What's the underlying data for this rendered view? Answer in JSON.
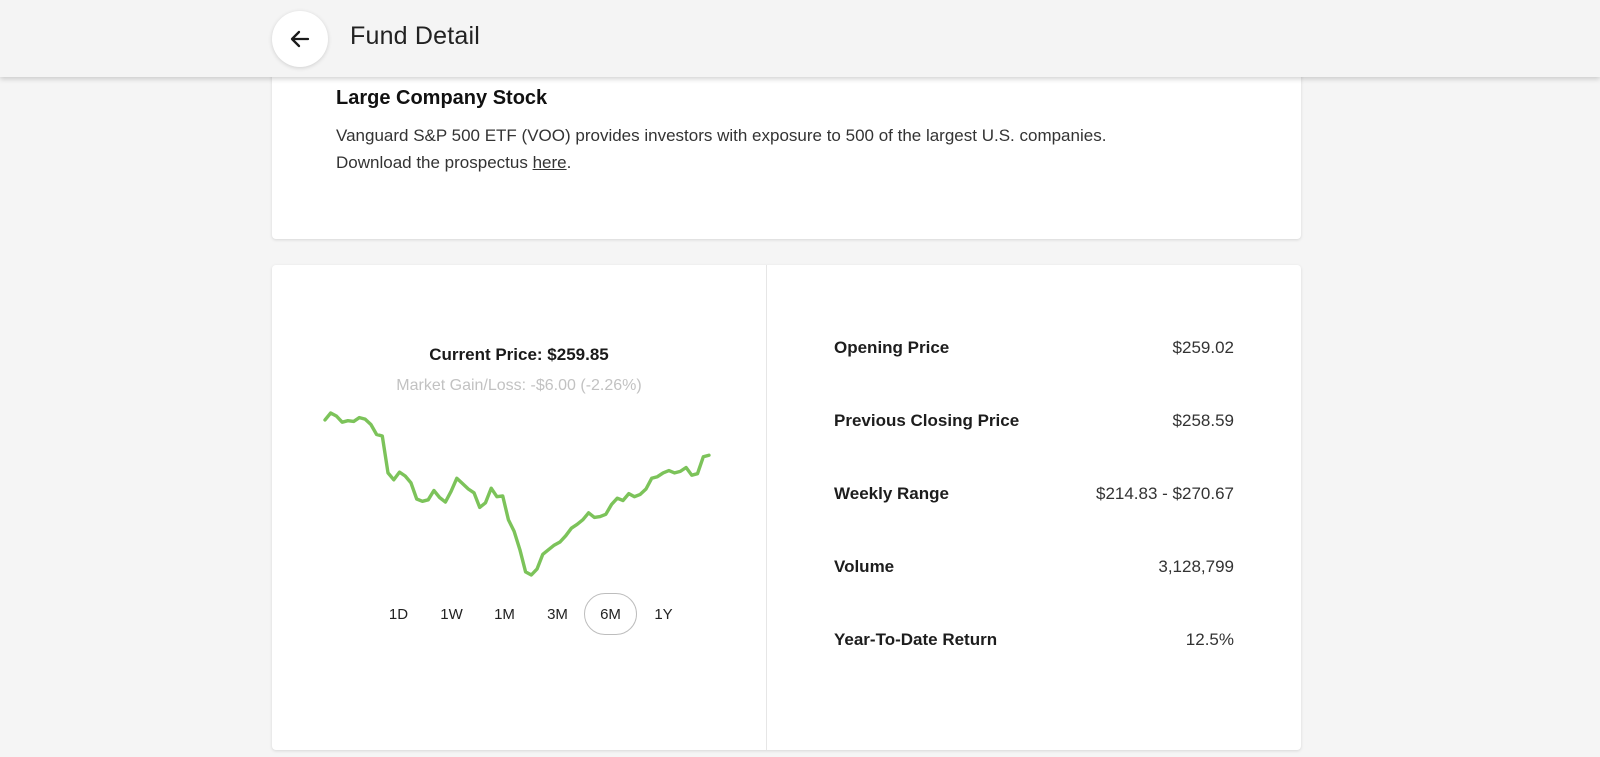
{
  "header": {
    "title": "Fund Detail",
    "back_icon": "arrow-left-icon"
  },
  "fund_info": {
    "heading": "Large Company Stock",
    "description": "Vanguard S&P 500 ETF (VOO) provides investors with exposure to 500 of the largest U.S. companies.",
    "prospectus_prefix": "Download the prospectus ",
    "prospectus_link": "here",
    "prospectus_suffix": "."
  },
  "price": {
    "current": "Current Price: $259.85",
    "gain_loss": "Market Gain/Loss: -$6.00 (-2.26%)"
  },
  "chart_data": {
    "type": "line",
    "color": "#7cc35a",
    "values": [
      74.4,
      75.3,
      74.9,
      74.1,
      74.3,
      74.2,
      74.7,
      74.5,
      73.8,
      72.5,
      72.3,
      67.5,
      66.6,
      67.6,
      67.1,
      66.2,
      64.1,
      63.8,
      64,
      65.2,
      64.3,
      63.7,
      65.1,
      66.8,
      66.1,
      65.4,
      64.9,
      63,
      63.6,
      65.5,
      64.4,
      64.5,
      61.4,
      59.9,
      57.5,
      54.6,
      54.2,
      55,
      56.9,
      57.5,
      58.1,
      58.5,
      59.3,
      60.3,
      60.8,
      61.4,
      62.3,
      61.7,
      61.8,
      62.1,
      63.4,
      64.2,
      63.9,
      64.8,
      64.4,
      64.7,
      65.4,
      66.8,
      67,
      67.5,
      67.8,
      67.5,
      67.7,
      68.2,
      67.2,
      67.4,
      69.6,
      69.8
    ]
  },
  "ranges": {
    "options": [
      "1D",
      "1W",
      "1M",
      "3M",
      "6M",
      "1Y"
    ],
    "selected": "6M"
  },
  "stats": [
    {
      "label": "Opening Price",
      "value": "$259.02"
    },
    {
      "label": "Previous Closing Price",
      "value": "$258.59"
    },
    {
      "label": "Weekly Range",
      "value": "$214.83 - $270.67"
    },
    {
      "label": "Volume",
      "value": "3,128,799"
    },
    {
      "label": "Year-To-Date Return",
      "value": "12.5%"
    }
  ]
}
